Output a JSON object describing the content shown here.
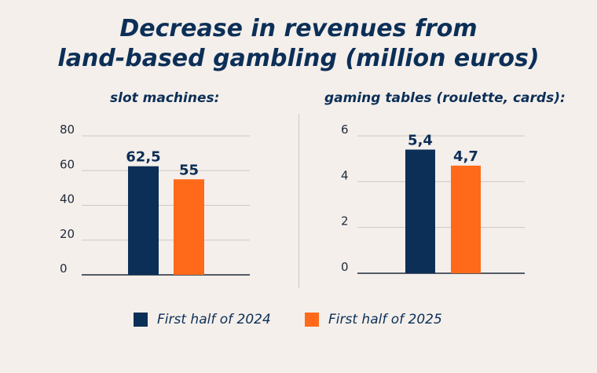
{
  "title_line1": "Decrease in revenues from",
  "title_line2": "land-based gambling (million euros)",
  "colors": {
    "navy": "#0c2f57",
    "orange": "#ff6a1a",
    "grid": "#cfc8c2",
    "axis": "#1f2a3a"
  },
  "legend": [
    {
      "label": "First half of 2024",
      "color": "#0c2f57"
    },
    {
      "label": "First half of 2025",
      "color": "#ff6a1a"
    }
  ],
  "chart_data": [
    {
      "type": "bar",
      "title": "slot machines:",
      "categories": [
        "First half of 2024",
        "First half of 2025"
      ],
      "values": [
        62.5,
        55
      ],
      "value_labels": [
        "62,5",
        "55"
      ],
      "ylim": [
        0,
        80
      ],
      "yticks": [
        0,
        20,
        40,
        60,
        80
      ],
      "grid": true
    },
    {
      "type": "bar",
      "title": "gaming tables (roulette, cards):",
      "categories": [
        "First half of 2024",
        "First half of 2025"
      ],
      "values": [
        5.4,
        4.7
      ],
      "value_labels": [
        "5,4",
        "4,7"
      ],
      "ylim": [
        0,
        6
      ],
      "yticks": [
        0,
        2,
        4,
        6
      ],
      "grid": true
    }
  ]
}
